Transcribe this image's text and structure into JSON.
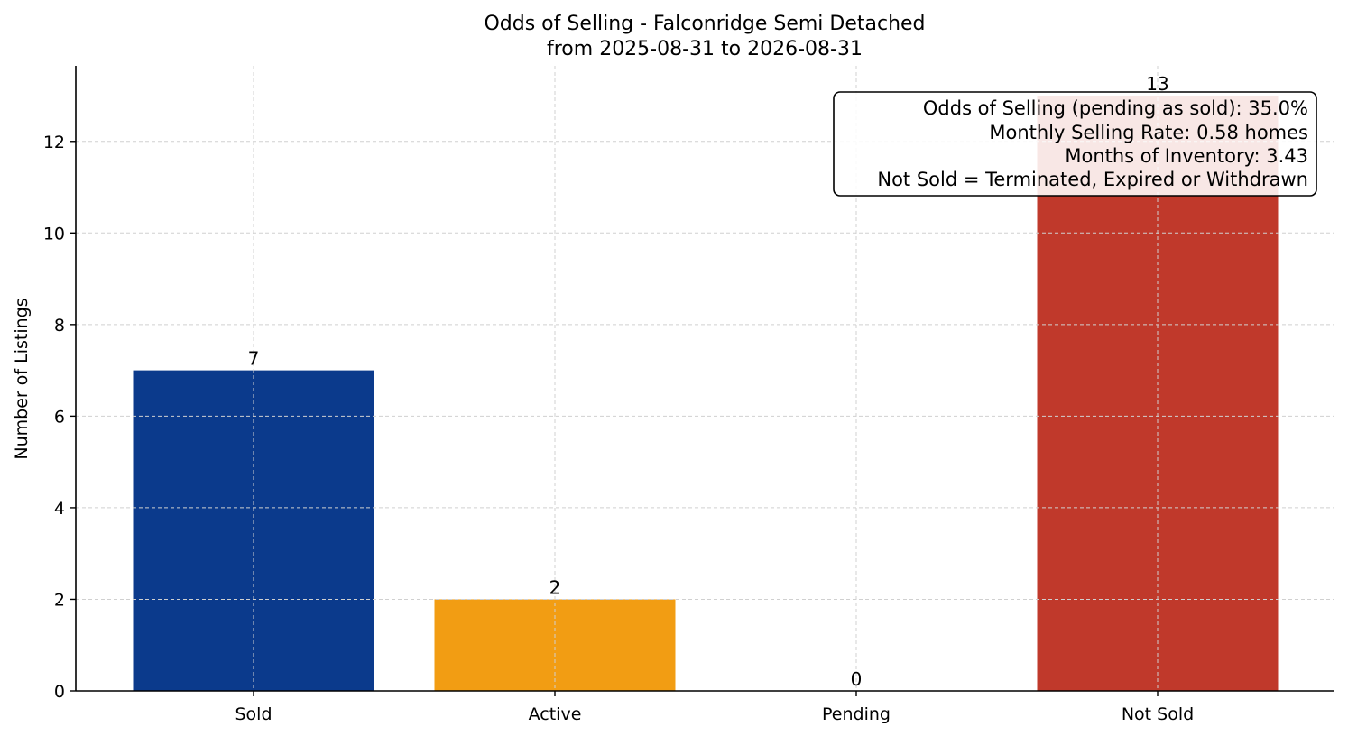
{
  "chart_data": {
    "type": "bar",
    "title": "Odds of Selling - Falconridge Semi Detached",
    "subtitle": "from 2025-08-31 to 2026-08-31",
    "xlabel": "",
    "ylabel": "Number of Listings",
    "categories": [
      "Sold",
      "Active",
      "Pending",
      "Not Sold"
    ],
    "values": [
      7,
      2,
      0,
      13
    ],
    "value_labels": [
      "7",
      "2",
      "0",
      "13"
    ],
    "colors": [
      "#0b3a8c",
      "#f29d13",
      "#2a7a3a",
      "#c0392b"
    ],
    "ylim": [
      0,
      13.65
    ],
    "yticks": [
      0,
      2,
      4,
      6,
      8,
      10,
      12
    ],
    "grid": true,
    "annotation": {
      "placement": "top-right",
      "lines": [
        "Odds of Selling (pending as sold): 35.0%",
        "Monthly Selling Rate: 0.58 homes",
        "Months of Inventory: 3.43",
        "Not Sold = Terminated, Expired or Withdrawn"
      ]
    }
  }
}
